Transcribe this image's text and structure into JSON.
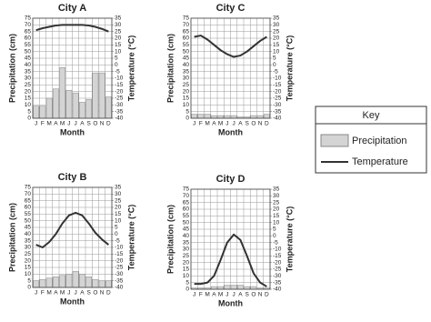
{
  "chart_data": [
    {
      "type": "bar",
      "title": "City A",
      "xlabel": "Month",
      "ylabel": "Precipitation (cm)",
      "y2label": "Temperature (°C)",
      "categories": [
        "J",
        "F",
        "M",
        "A",
        "M",
        "J",
        "J",
        "A",
        "S",
        "O",
        "N",
        "D"
      ],
      "series": [
        {
          "name": "Precipitation",
          "color": "#d4d4d4",
          "values": [
            9,
            9,
            15,
            22,
            38,
            21,
            19,
            12,
            14,
            34,
            34,
            16
          ]
        },
        {
          "name": "Temperature",
          "type": "line",
          "axis": "y2",
          "color": "#333333",
          "values": [
            26,
            27.5,
            28.5,
            29.5,
            30,
            30,
            30,
            30,
            29.5,
            28.5,
            27,
            25
          ]
        }
      ],
      "ylim": [
        0,
        75
      ],
      "yticks": [
        0,
        5,
        10,
        15,
        20,
        25,
        30,
        35,
        40,
        45,
        50,
        55,
        60,
        65,
        70,
        75
      ],
      "y2lim": [
        -40,
        35
      ],
      "y2ticks": [
        -40,
        -35,
        -30,
        -25,
        -20,
        -15,
        -10,
        -5,
        0,
        5,
        10,
        15,
        20,
        25,
        30,
        35
      ],
      "grid": true
    },
    {
      "type": "bar",
      "title": "City C",
      "xlabel": "Month",
      "ylabel": "Precipitation (cm)",
      "y2label": "Temperature (°C)",
      "categories": [
        "J",
        "F",
        "M",
        "A",
        "M",
        "J",
        "J",
        "A",
        "S",
        "O",
        "N",
        "D"
      ],
      "series": [
        {
          "name": "Precipitation",
          "color": "#d4d4d4",
          "values": [
            3,
            3,
            3,
            2,
            2,
            2,
            2,
            1,
            1,
            2,
            2,
            3
          ]
        },
        {
          "name": "Temperature",
          "type": "line",
          "axis": "y2",
          "color": "#333333",
          "values": [
            21,
            22,
            19,
            15,
            11,
            8,
            6,
            7,
            10,
            14,
            18,
            21
          ]
        }
      ],
      "ylim": [
        0,
        75
      ],
      "yticks": [
        0,
        5,
        10,
        15,
        20,
        25,
        30,
        35,
        40,
        45,
        50,
        55,
        60,
        65,
        70,
        75
      ],
      "y2lim": [
        -40,
        35
      ],
      "y2ticks": [
        -40,
        -35,
        -30,
        -25,
        -20,
        -15,
        -10,
        -5,
        0,
        5,
        10,
        15,
        20,
        25,
        30,
        35
      ],
      "grid": true
    },
    {
      "type": "bar",
      "title": "City B",
      "xlabel": "Month",
      "ylabel": "Precipitation (cm)",
      "y2label": "Temperature (°C)",
      "categories": [
        "J",
        "F",
        "M",
        "A",
        "M",
        "J",
        "J",
        "A",
        "S",
        "O",
        "N",
        "D"
      ],
      "series": [
        {
          "name": "Precipitation",
          "color": "#d4d4d4",
          "values": [
            5,
            6,
            7,
            8,
            9,
            10,
            12,
            10,
            8,
            6,
            5,
            5
          ]
        },
        {
          "name": "Temperature",
          "type": "line",
          "axis": "y2",
          "color": "#333333",
          "values": [
            -8,
            -10,
            -6,
            0,
            8,
            14,
            16,
            14,
            8,
            1,
            -4,
            -8
          ]
        }
      ],
      "ylim": [
        0,
        75
      ],
      "yticks": [
        0,
        5,
        10,
        15,
        20,
        25,
        30,
        35,
        40,
        45,
        50,
        55,
        60,
        65,
        70,
        75
      ],
      "y2lim": [
        -40,
        35
      ],
      "y2ticks": [
        -40,
        -35,
        -30,
        -25,
        -20,
        -15,
        -10,
        -5,
        0,
        5,
        10,
        15,
        20,
        25,
        30,
        35
      ],
      "grid": true
    },
    {
      "type": "bar",
      "title": "City D",
      "xlabel": "Month",
      "ylabel": "Precipitation (cm)",
      "y2label": "Temperature (°C)",
      "categories": [
        "J",
        "F",
        "M",
        "A",
        "M",
        "J",
        "J",
        "A",
        "S",
        "O",
        "N",
        "D"
      ],
      "series": [
        {
          "name": "Precipitation",
          "color": "#d4d4d4",
          "values": [
            1,
            1,
            1,
            2,
            2,
            3,
            3,
            3,
            2,
            2,
            1,
            1
          ]
        },
        {
          "name": "Temperature",
          "type": "line",
          "axis": "y2",
          "color": "#333333",
          "values": [
            -36,
            -36,
            -35,
            -30,
            -18,
            -5,
            1,
            -3,
            -15,
            -28,
            -35,
            -38
          ]
        }
      ],
      "ylim": [
        0,
        75
      ],
      "yticks": [
        0,
        5,
        10,
        15,
        20,
        25,
        30,
        35,
        40,
        45,
        50,
        55,
        60,
        65,
        70,
        75
      ],
      "y2lim": [
        -40,
        35
      ],
      "y2ticks": [
        -40,
        -35,
        -30,
        -25,
        -20,
        -15,
        -10,
        -5,
        0,
        5,
        10,
        15,
        20,
        25,
        30,
        35
      ],
      "grid": true
    }
  ],
  "key": {
    "title": "Key"
  }
}
